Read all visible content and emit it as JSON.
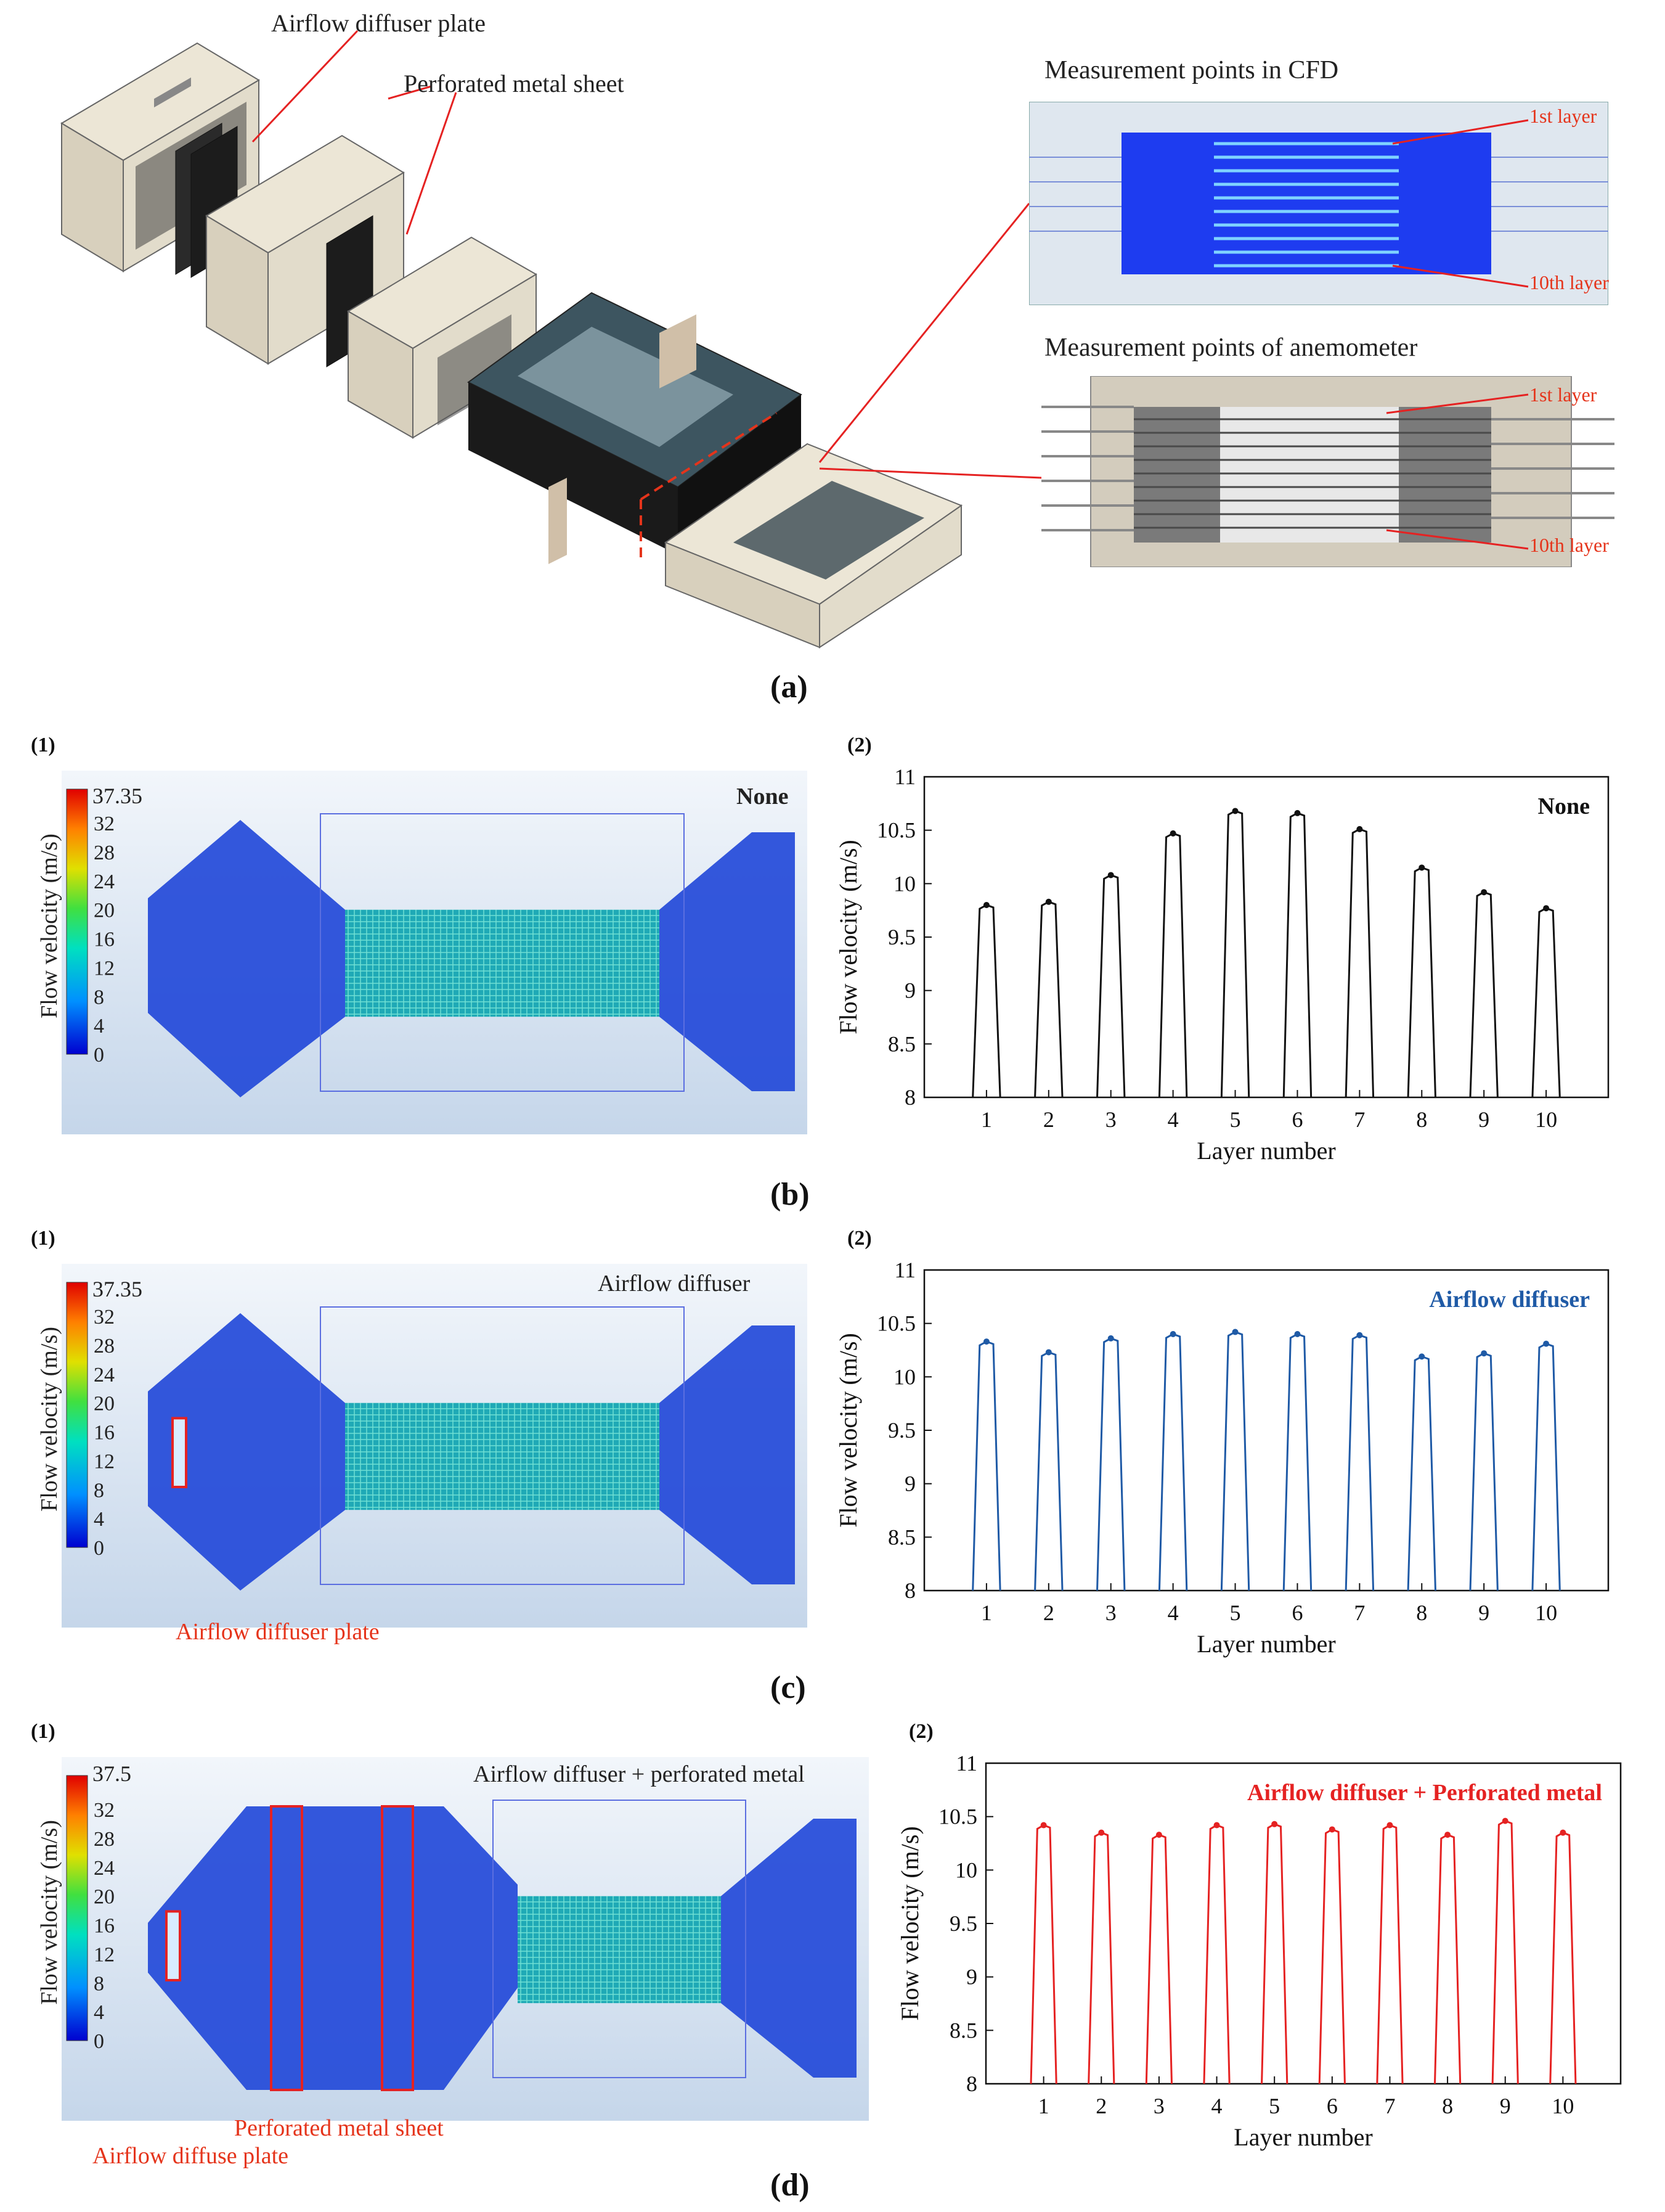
{
  "panel_a": {
    "letter": "(a)",
    "label_diffuser_plate": "Airflow diffuser plate",
    "label_perforated_sheet": "Perforated metal sheet",
    "cfd_title": "Measurement points in CFD",
    "anemo_title": "Measurement points of anemometer",
    "first_layer": "1st layer",
    "tenth_layer": "10th layer"
  },
  "panel_b": {
    "letter": "(b)",
    "sub1": "(1)",
    "sub2": "(2)",
    "contour_label": "None",
    "colorbar_title": "Flow velocity (m/s)",
    "colorbar_max": "37.35"
  },
  "panel_c": {
    "letter": "(c)",
    "sub1": "(1)",
    "sub2": "(2)",
    "contour_label": "Airflow diffuser",
    "callout": "Airflow diffuser plate",
    "colorbar_title": "Flow velocity (m/s)",
    "colorbar_max": "37.35"
  },
  "panel_d": {
    "letter": "(d)",
    "sub1": "(1)",
    "sub2": "(2)",
    "contour_label": "Airflow diffuser + perforated metal",
    "callout_sheet": "Perforated metal sheet",
    "callout_plate": "Airflow diffuse plate",
    "colorbar_title": "Flow velocity (m/s)",
    "colorbar_max": "37.5"
  },
  "colorbar_ticks": [
    "32",
    "28",
    "24",
    "20",
    "16",
    "12",
    "8",
    "4",
    "0"
  ],
  "chart_data": [
    {
      "id": "b2",
      "type": "line",
      "title": "None",
      "title_color": "#111111",
      "color": "#111111",
      "xlabel": "Layer number",
      "ylabel": "Flow velocity (m/s)",
      "categories": [
        "1",
        "2",
        "3",
        "4",
        "5",
        "6",
        "7",
        "8",
        "9",
        "10"
      ],
      "yticks": [
        "8",
        "8.5",
        "9",
        "9.5",
        "10",
        "10.5",
        "11"
      ],
      "ylim": [
        8,
        11
      ],
      "values": [
        9.8,
        9.83,
        10.08,
        10.47,
        10.68,
        10.66,
        10.51,
        10.15,
        9.92,
        9.77
      ]
    },
    {
      "id": "c2",
      "type": "line",
      "title": "Airflow diffuser",
      "title_color": "#1f5aa6",
      "color": "#1f5aa6",
      "xlabel": "Layer number",
      "ylabel": "Flow velocity (m/s)",
      "categories": [
        "1",
        "2",
        "3",
        "4",
        "5",
        "6",
        "7",
        "8",
        "9",
        "10"
      ],
      "yticks": [
        "8",
        "8.5",
        "9",
        "9.5",
        "10",
        "10.5",
        "11"
      ],
      "ylim": [
        8,
        11
      ],
      "values": [
        10.33,
        10.23,
        10.36,
        10.4,
        10.42,
        10.4,
        10.39,
        10.19,
        10.22,
        10.31
      ]
    },
    {
      "id": "d2",
      "type": "line",
      "title": "Airflow diffuser + Perforated metal",
      "title_color": "#e52222",
      "color": "#e52222",
      "xlabel": "Layer number",
      "ylabel": "Flow velocity (m/s)",
      "categories": [
        "1",
        "2",
        "3",
        "4",
        "5",
        "6",
        "7",
        "8",
        "9",
        "10"
      ],
      "yticks": [
        "8",
        "8.5",
        "9",
        "9.5",
        "10",
        "10.5",
        "11"
      ],
      "ylim": [
        8,
        11
      ],
      "values": [
        10.42,
        10.35,
        10.33,
        10.42,
        10.43,
        10.38,
        10.42,
        10.33,
        10.46,
        10.35
      ]
    }
  ]
}
